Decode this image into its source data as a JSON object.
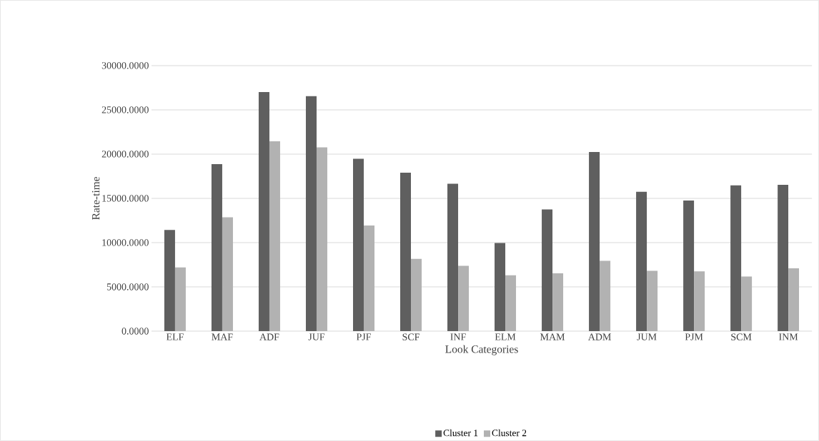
{
  "chart_data": {
    "type": "bar",
    "xlabel": "Look Categories",
    "ylabel": "Rate-time",
    "categories": [
      "ELF",
      "MAF",
      "ADF",
      "JUF",
      "PJF",
      "SCF",
      "INF",
      "ELM",
      "MAM",
      "ADM",
      "JUM",
      "PJM",
      "SCM",
      "INM"
    ],
    "series": [
      {
        "name": "Cluster 1",
        "color": "#5f5f5f",
        "values": [
          11420,
          18860,
          27000,
          26550,
          19470,
          17900,
          16640,
          9950,
          13740,
          20230,
          15730,
          14750,
          16460,
          16520
        ]
      },
      {
        "name": "Cluster  2",
        "color": "#b2b2b2",
        "values": [
          7200,
          12850,
          21450,
          20750,
          11930,
          8160,
          7370,
          6310,
          6520,
          7930,
          6820,
          6740,
          6160,
          7100
        ]
      }
    ],
    "ylim": [
      0,
      30000
    ],
    "yticks": [
      {
        "value": 0,
        "label": "0.0000"
      },
      {
        "value": 5000,
        "label": "5000.0000"
      },
      {
        "value": 10000,
        "label": "10000.0000"
      },
      {
        "value": 15000,
        "label": "15000.0000"
      },
      {
        "value": 20000,
        "label": "20000.0000"
      },
      {
        "value": 25000,
        "label": "25000.0000"
      },
      {
        "value": 30000,
        "label": "30000.0000"
      }
    ],
    "grid": "y",
    "legend": "bottom"
  }
}
